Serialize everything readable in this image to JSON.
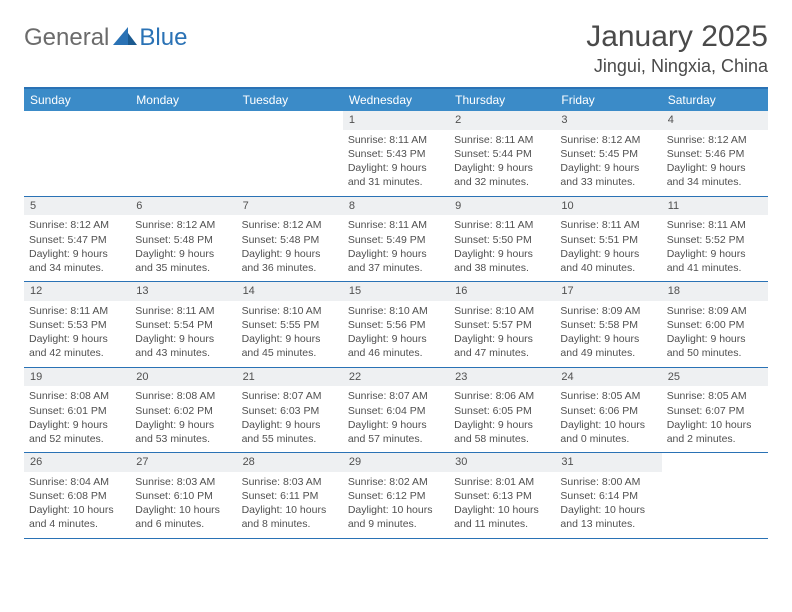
{
  "logo": {
    "part1": "General",
    "part2": "Blue"
  },
  "title": "January 2025",
  "location": "Jingui, Ningxia, China",
  "colors": {
    "header_bg": "#3b8bc8",
    "border": "#2a72b5",
    "daynum_bg": "#eef0f2",
    "text": "#505050"
  },
  "day_names": [
    "Sunday",
    "Monday",
    "Tuesday",
    "Wednesday",
    "Thursday",
    "Friday",
    "Saturday"
  ],
  "weeks": [
    [
      null,
      null,
      null,
      {
        "n": "1",
        "sr": "Sunrise: 8:11 AM",
        "ss": "Sunset: 5:43 PM",
        "d1": "Daylight: 9 hours",
        "d2": "and 31 minutes."
      },
      {
        "n": "2",
        "sr": "Sunrise: 8:11 AM",
        "ss": "Sunset: 5:44 PM",
        "d1": "Daylight: 9 hours",
        "d2": "and 32 minutes."
      },
      {
        "n": "3",
        "sr": "Sunrise: 8:12 AM",
        "ss": "Sunset: 5:45 PM",
        "d1": "Daylight: 9 hours",
        "d2": "and 33 minutes."
      },
      {
        "n": "4",
        "sr": "Sunrise: 8:12 AM",
        "ss": "Sunset: 5:46 PM",
        "d1": "Daylight: 9 hours",
        "d2": "and 34 minutes."
      }
    ],
    [
      {
        "n": "5",
        "sr": "Sunrise: 8:12 AM",
        "ss": "Sunset: 5:47 PM",
        "d1": "Daylight: 9 hours",
        "d2": "and 34 minutes."
      },
      {
        "n": "6",
        "sr": "Sunrise: 8:12 AM",
        "ss": "Sunset: 5:48 PM",
        "d1": "Daylight: 9 hours",
        "d2": "and 35 minutes."
      },
      {
        "n": "7",
        "sr": "Sunrise: 8:12 AM",
        "ss": "Sunset: 5:48 PM",
        "d1": "Daylight: 9 hours",
        "d2": "and 36 minutes."
      },
      {
        "n": "8",
        "sr": "Sunrise: 8:11 AM",
        "ss": "Sunset: 5:49 PM",
        "d1": "Daylight: 9 hours",
        "d2": "and 37 minutes."
      },
      {
        "n": "9",
        "sr": "Sunrise: 8:11 AM",
        "ss": "Sunset: 5:50 PM",
        "d1": "Daylight: 9 hours",
        "d2": "and 38 minutes."
      },
      {
        "n": "10",
        "sr": "Sunrise: 8:11 AM",
        "ss": "Sunset: 5:51 PM",
        "d1": "Daylight: 9 hours",
        "d2": "and 40 minutes."
      },
      {
        "n": "11",
        "sr": "Sunrise: 8:11 AM",
        "ss": "Sunset: 5:52 PM",
        "d1": "Daylight: 9 hours",
        "d2": "and 41 minutes."
      }
    ],
    [
      {
        "n": "12",
        "sr": "Sunrise: 8:11 AM",
        "ss": "Sunset: 5:53 PM",
        "d1": "Daylight: 9 hours",
        "d2": "and 42 minutes."
      },
      {
        "n": "13",
        "sr": "Sunrise: 8:11 AM",
        "ss": "Sunset: 5:54 PM",
        "d1": "Daylight: 9 hours",
        "d2": "and 43 minutes."
      },
      {
        "n": "14",
        "sr": "Sunrise: 8:10 AM",
        "ss": "Sunset: 5:55 PM",
        "d1": "Daylight: 9 hours",
        "d2": "and 45 minutes."
      },
      {
        "n": "15",
        "sr": "Sunrise: 8:10 AM",
        "ss": "Sunset: 5:56 PM",
        "d1": "Daylight: 9 hours",
        "d2": "and 46 minutes."
      },
      {
        "n": "16",
        "sr": "Sunrise: 8:10 AM",
        "ss": "Sunset: 5:57 PM",
        "d1": "Daylight: 9 hours",
        "d2": "and 47 minutes."
      },
      {
        "n": "17",
        "sr": "Sunrise: 8:09 AM",
        "ss": "Sunset: 5:58 PM",
        "d1": "Daylight: 9 hours",
        "d2": "and 49 minutes."
      },
      {
        "n": "18",
        "sr": "Sunrise: 8:09 AM",
        "ss": "Sunset: 6:00 PM",
        "d1": "Daylight: 9 hours",
        "d2": "and 50 minutes."
      }
    ],
    [
      {
        "n": "19",
        "sr": "Sunrise: 8:08 AM",
        "ss": "Sunset: 6:01 PM",
        "d1": "Daylight: 9 hours",
        "d2": "and 52 minutes."
      },
      {
        "n": "20",
        "sr": "Sunrise: 8:08 AM",
        "ss": "Sunset: 6:02 PM",
        "d1": "Daylight: 9 hours",
        "d2": "and 53 minutes."
      },
      {
        "n": "21",
        "sr": "Sunrise: 8:07 AM",
        "ss": "Sunset: 6:03 PM",
        "d1": "Daylight: 9 hours",
        "d2": "and 55 minutes."
      },
      {
        "n": "22",
        "sr": "Sunrise: 8:07 AM",
        "ss": "Sunset: 6:04 PM",
        "d1": "Daylight: 9 hours",
        "d2": "and 57 minutes."
      },
      {
        "n": "23",
        "sr": "Sunrise: 8:06 AM",
        "ss": "Sunset: 6:05 PM",
        "d1": "Daylight: 9 hours",
        "d2": "and 58 minutes."
      },
      {
        "n": "24",
        "sr": "Sunrise: 8:05 AM",
        "ss": "Sunset: 6:06 PM",
        "d1": "Daylight: 10 hours",
        "d2": "and 0 minutes."
      },
      {
        "n": "25",
        "sr": "Sunrise: 8:05 AM",
        "ss": "Sunset: 6:07 PM",
        "d1": "Daylight: 10 hours",
        "d2": "and 2 minutes."
      }
    ],
    [
      {
        "n": "26",
        "sr": "Sunrise: 8:04 AM",
        "ss": "Sunset: 6:08 PM",
        "d1": "Daylight: 10 hours",
        "d2": "and 4 minutes."
      },
      {
        "n": "27",
        "sr": "Sunrise: 8:03 AM",
        "ss": "Sunset: 6:10 PM",
        "d1": "Daylight: 10 hours",
        "d2": "and 6 minutes."
      },
      {
        "n": "28",
        "sr": "Sunrise: 8:03 AM",
        "ss": "Sunset: 6:11 PM",
        "d1": "Daylight: 10 hours",
        "d2": "and 8 minutes."
      },
      {
        "n": "29",
        "sr": "Sunrise: 8:02 AM",
        "ss": "Sunset: 6:12 PM",
        "d1": "Daylight: 10 hours",
        "d2": "and 9 minutes."
      },
      {
        "n": "30",
        "sr": "Sunrise: 8:01 AM",
        "ss": "Sunset: 6:13 PM",
        "d1": "Daylight: 10 hours",
        "d2": "and 11 minutes."
      },
      {
        "n": "31",
        "sr": "Sunrise: 8:00 AM",
        "ss": "Sunset: 6:14 PM",
        "d1": "Daylight: 10 hours",
        "d2": "and 13 minutes."
      },
      null
    ]
  ]
}
